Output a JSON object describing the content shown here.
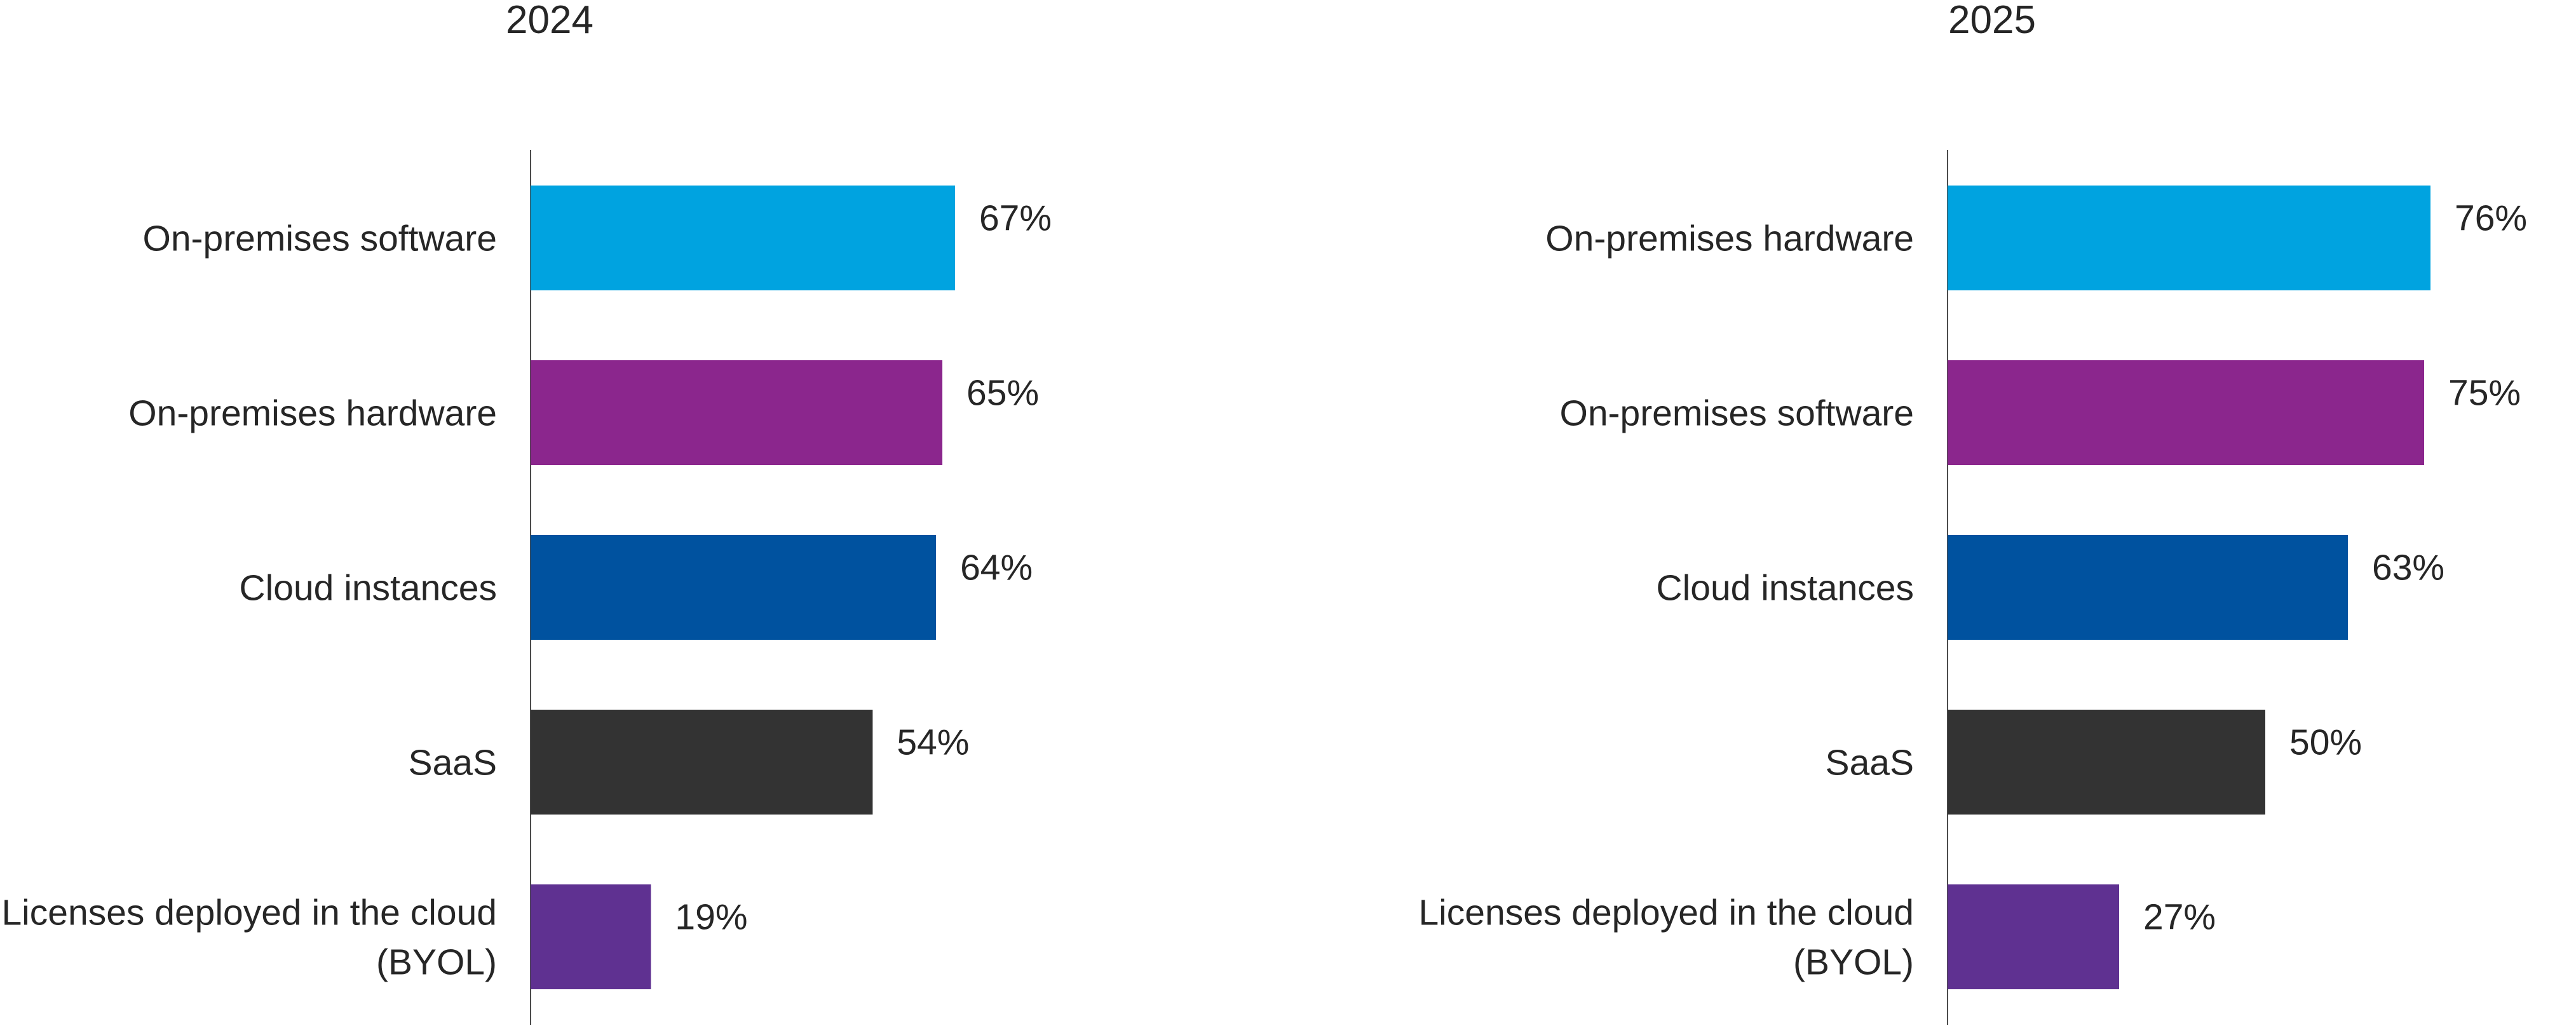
{
  "chart_data": [
    {
      "type": "bar",
      "orientation": "horizontal",
      "title": "2024",
      "categories": [
        "On-premises software",
        "On-premises hardware",
        "Cloud instances",
        "SaaS",
        "Licenses deployed in the cloud (BYOL)"
      ],
      "category_lines": [
        [
          "On-premises software"
        ],
        [
          "On-premises hardware"
        ],
        [
          "Cloud instances"
        ],
        [
          "SaaS"
        ],
        [
          "Licenses deployed in the cloud",
          "(BYOL)"
        ]
      ],
      "values": [
        67,
        65,
        64,
        54,
        19
      ],
      "value_labels": [
        "67%",
        "65%",
        "64%",
        "54%",
        "19%"
      ],
      "colors": [
        "#00a3e0",
        "#8b268d",
        "#00529f",
        "#333333",
        "#5f3191"
      ],
      "xlim": [
        0,
        100
      ],
      "grid": false,
      "legend": "none"
    },
    {
      "type": "bar",
      "orientation": "horizontal",
      "title": "2025",
      "categories": [
        "On-premises hardware",
        "On-premises software",
        "Cloud instances",
        "SaaS",
        "Licenses deployed in the cloud (BYOL)"
      ],
      "category_lines": [
        [
          "On-premises hardware"
        ],
        [
          "On-premises software"
        ],
        [
          "Cloud instances"
        ],
        [
          "SaaS"
        ],
        [
          "Licenses deployed in the cloud",
          "(BYOL)"
        ]
      ],
      "values": [
        76,
        75,
        63,
        50,
        27
      ],
      "value_labels": [
        "76%",
        "75%",
        "63%",
        "50%",
        "27%"
      ],
      "colors": [
        "#00a3e0",
        "#8b268d",
        "#00529f",
        "#333333",
        "#5f3191"
      ],
      "xlim": [
        0,
        100
      ],
      "grid": false,
      "legend": "none"
    }
  ]
}
